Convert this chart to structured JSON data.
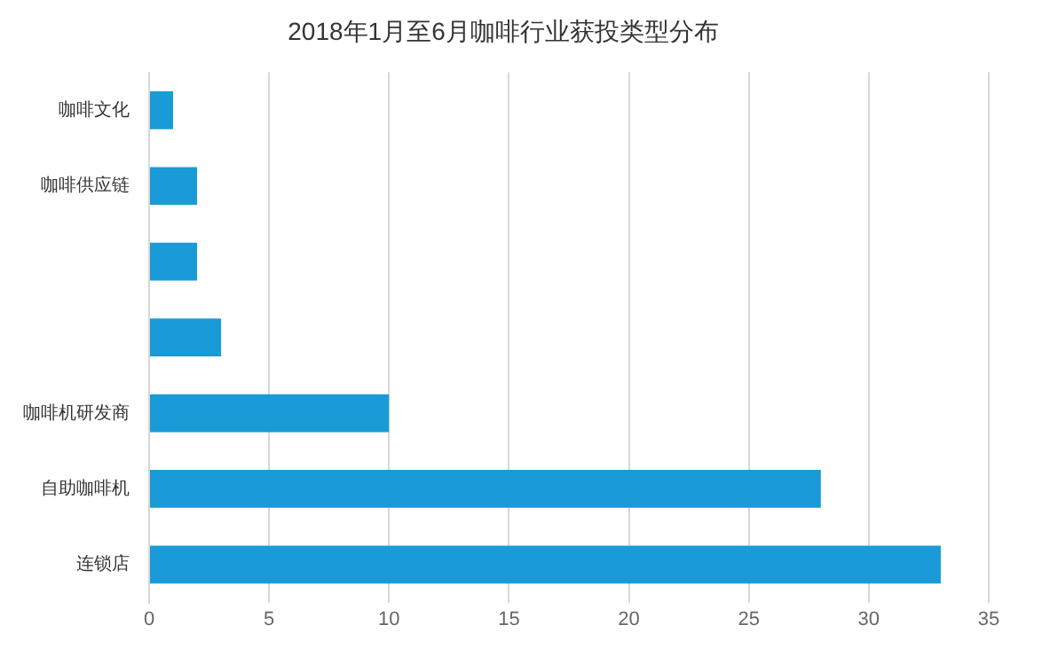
{
  "chart_data": {
    "type": "bar",
    "orientation": "horizontal",
    "title": "2018年1月至6月咖啡行业获投类型分布",
    "categories": [
      "咖啡文化",
      "咖啡供应链",
      null,
      null,
      "咖啡机研发商",
      "自助咖啡机",
      "连锁店"
    ],
    "values": [
      1,
      2,
      2,
      3,
      10,
      28,
      33
    ],
    "color": "#1a9bd7",
    "xlim": [
      0,
      35
    ],
    "xticks": [
      0,
      5,
      10,
      15,
      20,
      25,
      30,
      35
    ],
    "grid": "x"
  }
}
